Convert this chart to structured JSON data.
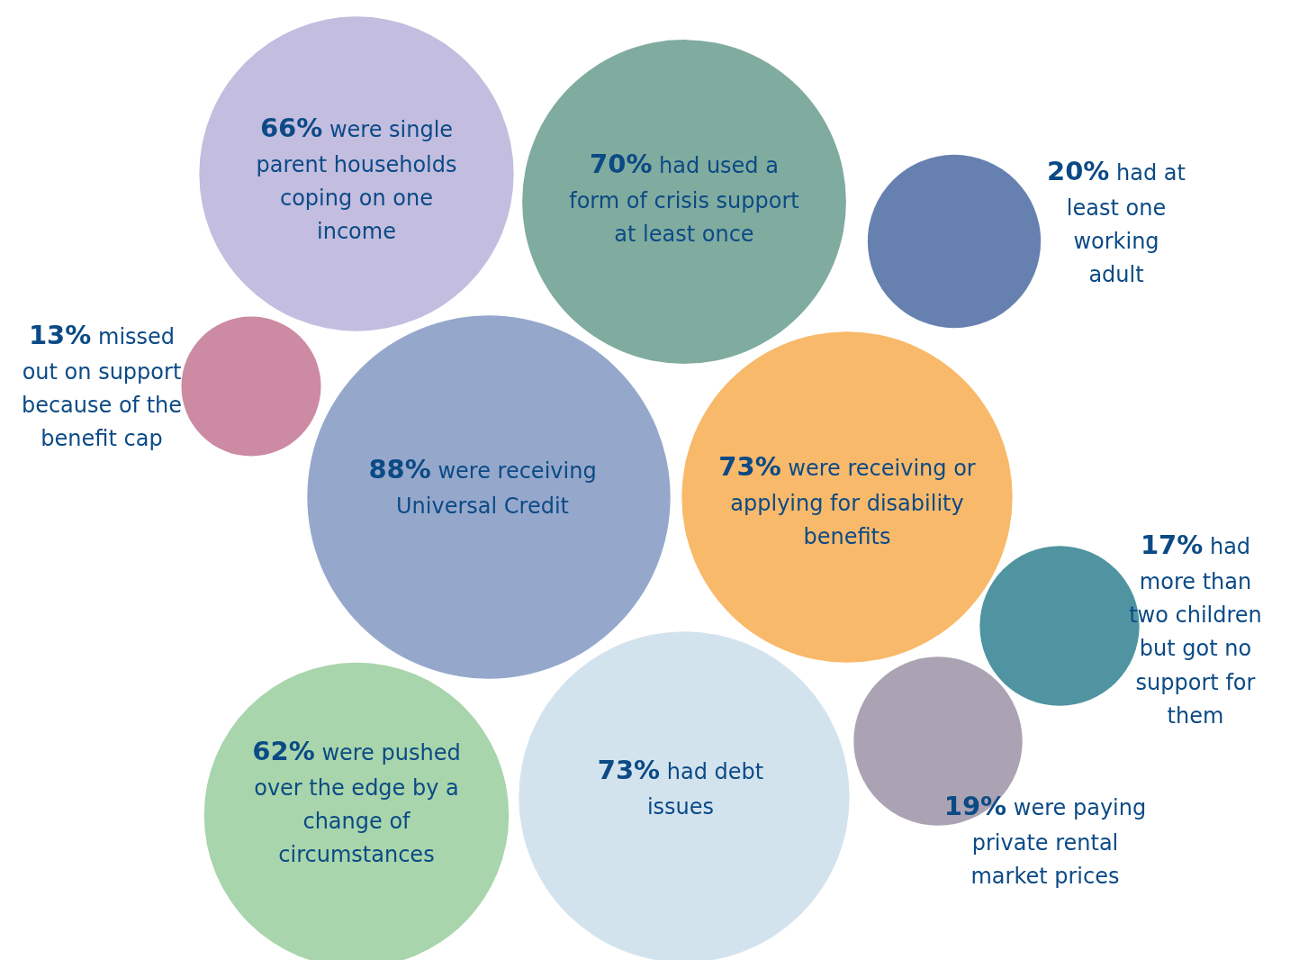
{
  "chart_data": {
    "type": "other",
    "categories": [
      "were single parent households coping on one income",
      "had used a form of crisis support at least once",
      "had at least one working adult",
      "missed out on support because of the benefit cap",
      "were receiving Universal Credit",
      "were receiving or applying for disability benefits",
      "had more than two children but got no support for them",
      "were paying private rental market prices",
      "were pushed over the edge by a change of circumstances",
      "had debt issues"
    ],
    "values": [
      66,
      70,
      20,
      13,
      88,
      73,
      17,
      19,
      62,
      73
    ],
    "value_labels": [
      "66%",
      "70%",
      "20%",
      "13%",
      "88%",
      "73%",
      "17%",
      "19%",
      "62%",
      "73%"
    ],
    "colors": [
      "#c3bde0",
      "#80ab9f",
      "#6680b0",
      "#cc8aa3",
      "#95a8cb",
      "#f9b96a",
      "#4f94a0",
      "#aba3b3",
      "#a8d5ab",
      "#d3e3ee"
    ]
  }
}
